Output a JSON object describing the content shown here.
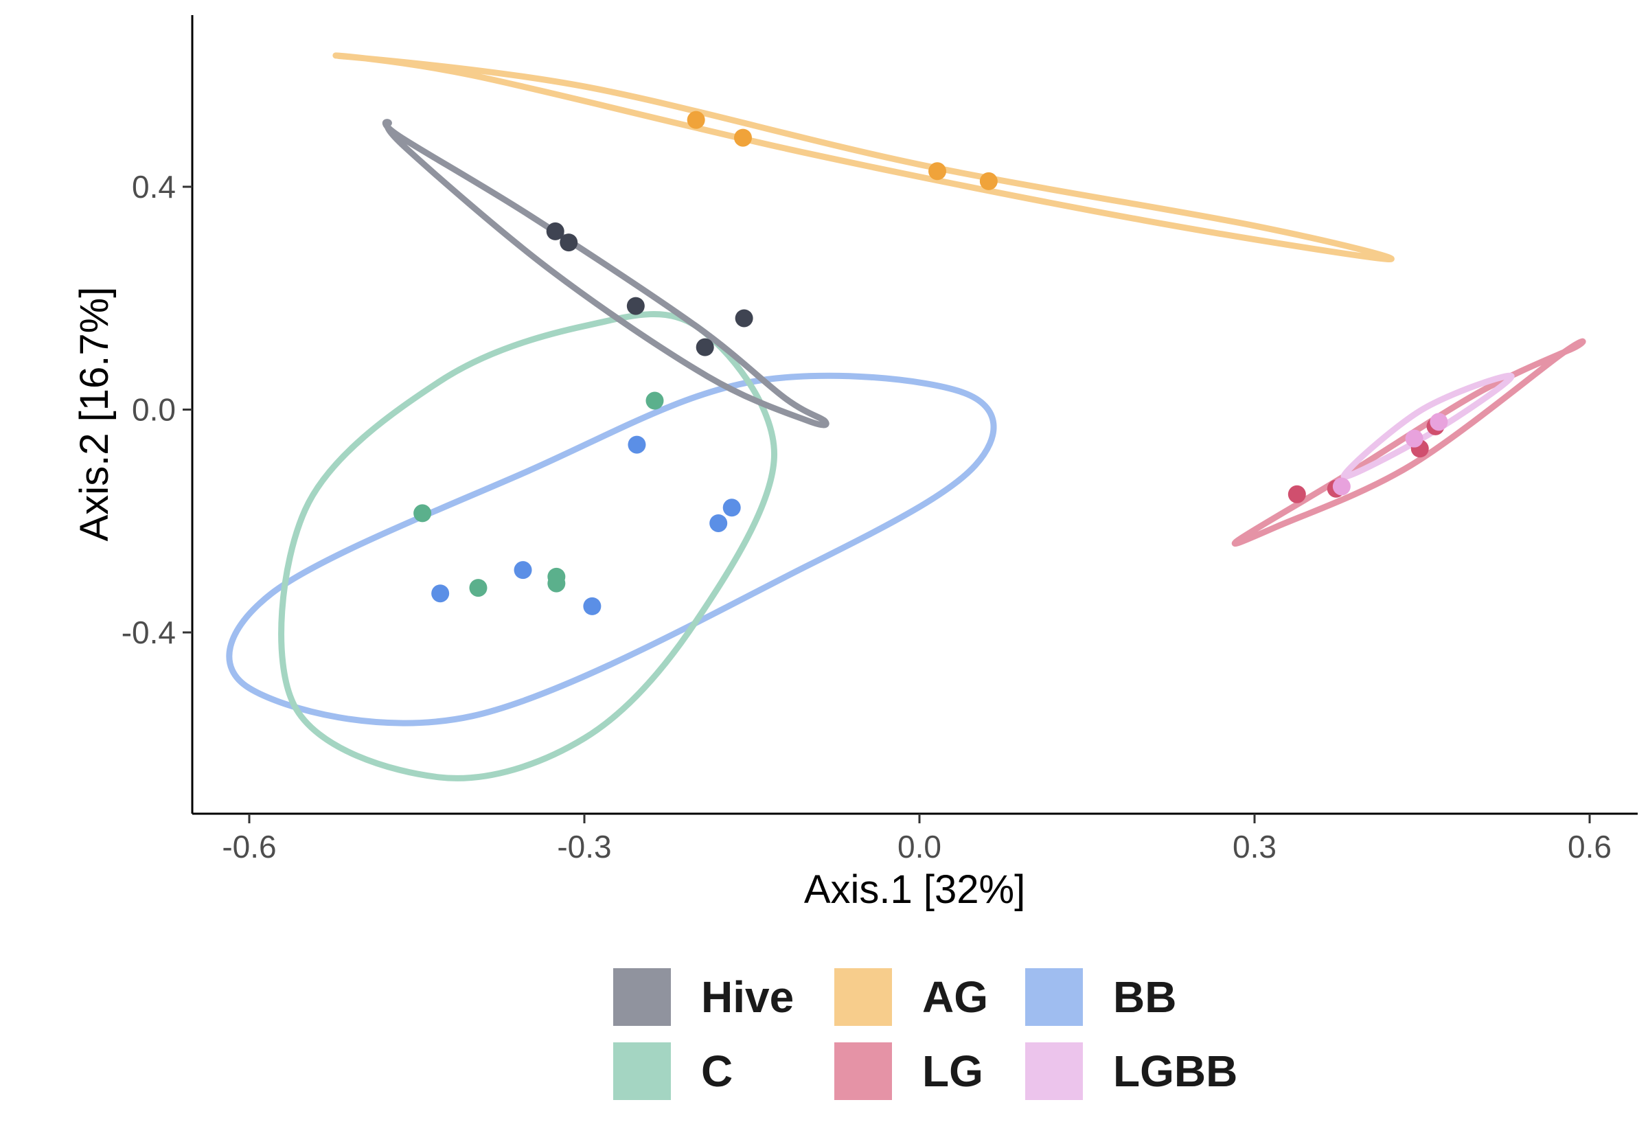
{
  "chart_data": {
    "type": "scatter",
    "xlabel": "Axis.1   [32%]",
    "ylabel": "Axis.2   [16.7%]",
    "xlim": [
      -0.65,
      0.65
    ],
    "ylim": [
      -0.73,
      0.7
    ],
    "xticks": [
      -0.6,
      -0.3,
      0.0,
      0.3,
      0.6
    ],
    "yticks": [
      0.4,
      0.0,
      -0.4
    ],
    "xtick_labels": [
      "-0.6",
      "-0.3",
      "0.0",
      "0.3",
      "0.6"
    ],
    "ytick_labels": [
      "0.4",
      "0.0",
      "-0.4"
    ],
    "grid": false,
    "legend_position": "bottom",
    "series": [
      {
        "name": "Hive",
        "color": "#3f4452",
        "ellipse_color": "#90939e",
        "x": [
          -0.326,
          -0.314,
          -0.254,
          -0.192,
          -0.157
        ],
        "y": [
          0.32,
          0.3,
          0.186,
          0.112,
          0.164
        ],
        "ellipse": [
          [
            -0.475,
            0.515
          ],
          [
            -0.465,
            0.49
          ],
          [
            -0.35,
            0.35
          ],
          [
            -0.2,
            0.15
          ],
          [
            -0.12,
            0.02
          ],
          [
            -0.085,
            -0.02
          ],
          [
            -0.1,
            -0.02
          ],
          [
            -0.19,
            0.06
          ],
          [
            -0.33,
            0.25
          ],
          [
            -0.46,
            0.47
          ],
          [
            -0.475,
            0.515
          ]
        ]
      },
      {
        "name": "C",
        "color": "#5bb08c",
        "ellipse_color": "#a4d5c2",
        "x": [
          -0.445,
          -0.395,
          -0.325,
          -0.325,
          -0.237
        ],
        "y": [
          -0.186,
          -0.32,
          -0.3,
          -0.312,
          0.016
        ],
        "ellipse": [
          [
            -0.2,
            0.15
          ],
          [
            -0.13,
            -0.08
          ],
          [
            -0.2,
            -0.38
          ],
          [
            -0.3,
            -0.59
          ],
          [
            -0.43,
            -0.66
          ],
          [
            -0.56,
            -0.53
          ],
          [
            -0.55,
            -0.18
          ],
          [
            -0.43,
            0.05
          ],
          [
            -0.3,
            0.15
          ],
          [
            -0.2,
            0.15
          ]
        ]
      },
      {
        "name": "AG",
        "color": "#f0a33a",
        "ellipse_color": "#f7cd8c",
        "x": [
          -0.2,
          -0.158,
          0.016,
          0.062
        ],
        "y": [
          0.52,
          0.488,
          0.428,
          0.41
        ],
        "ellipse": [
          [
            -0.52,
            0.635
          ],
          [
            -0.3,
            0.58
          ],
          [
            0.0,
            0.44
          ],
          [
            0.3,
            0.33
          ],
          [
            0.42,
            0.27
          ],
          [
            0.2,
            0.34
          ],
          [
            -0.1,
            0.46
          ],
          [
            -0.4,
            0.6
          ],
          [
            -0.52,
            0.635
          ]
        ]
      },
      {
        "name": "LG",
        "color": "#d04f6e",
        "ellipse_color": "#e593a6",
        "x": [
          0.338,
          0.373,
          0.448,
          0.462
        ],
        "y": [
          -0.152,
          -0.142,
          -0.07,
          -0.03
        ],
        "ellipse": [
          [
            0.585,
            0.11
          ],
          [
            0.5,
            0.03
          ],
          [
            0.38,
            -0.12
          ],
          [
            0.285,
            -0.235
          ],
          [
            0.32,
            -0.21
          ],
          [
            0.44,
            -0.1
          ],
          [
            0.575,
            0.1
          ],
          [
            0.585,
            0.11
          ]
        ]
      },
      {
        "name": "BB",
        "color": "#5b8fe6",
        "ellipse_color": "#9fbdf0",
        "x": [
          -0.429,
          -0.355,
          -0.293,
          -0.253,
          -0.18,
          -0.168
        ],
        "y": [
          -0.33,
          -0.288,
          -0.353,
          -0.063,
          -0.204,
          -0.176
        ],
        "ellipse": [
          [
            -0.15,
            0.05
          ],
          [
            0.04,
            0.03
          ],
          [
            0.05,
            -0.1
          ],
          [
            -0.1,
            -0.28
          ],
          [
            -0.4,
            -0.55
          ],
          [
            -0.6,
            -0.5
          ],
          [
            -0.58,
            -0.33
          ],
          [
            -0.35,
            -0.11
          ],
          [
            -0.15,
            0.05
          ]
        ]
      },
      {
        "name": "LGBB",
        "color": "#e8a2dd",
        "ellipse_color": "#ecc4ec",
        "x": [
          0.378,
          0.443,
          0.465
        ],
        "y": [
          -0.138,
          -0.052,
          -0.022
        ],
        "ellipse": [
          [
            0.53,
            0.06
          ],
          [
            0.45,
            0.0
          ],
          [
            0.38,
            -0.12
          ],
          [
            0.46,
            -0.04
          ],
          [
            0.53,
            0.06
          ]
        ]
      }
    ],
    "legend_order": [
      "Hive",
      "AG",
      "BB",
      "C",
      "LG",
      "LGBB"
    ]
  }
}
